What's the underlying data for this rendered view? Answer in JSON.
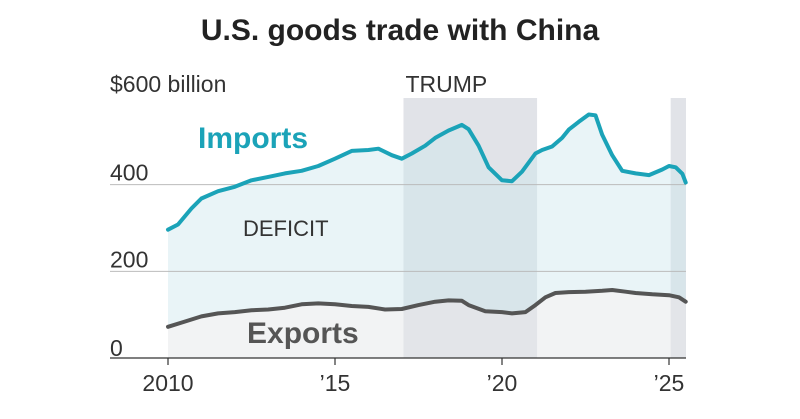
{
  "chart_data": {
    "type": "area",
    "title": "U.S. goods trade with China",
    "y_unit_label": "$600 billion",
    "ylim": [
      0,
      600
    ],
    "xlim": [
      2010,
      2025.6
    ],
    "y_ticks": [
      {
        "value": 0,
        "label": "0"
      },
      {
        "value": 200,
        "label": "200"
      },
      {
        "value": 400,
        "label": "400"
      },
      {
        "value": 600,
        "label": "$600 billion"
      }
    ],
    "x_ticks": [
      {
        "value": 2010,
        "label": "2010"
      },
      {
        "value": 2015,
        "label": "’15"
      },
      {
        "value": 2020,
        "label": "’20"
      },
      {
        "value": 2025,
        "label": "’25"
      }
    ],
    "grid": true,
    "shaded_periods": [
      {
        "label": "TRUMP",
        "start": 2017.05,
        "end": 2021.05,
        "color": "#e1e3e8"
      },
      {
        "label": "",
        "start": 2025.05,
        "end": 2025.6,
        "color": "#e1e3e8"
      }
    ],
    "fill_label": "DEFICIT",
    "series": [
      {
        "name": "Imports",
        "color": "#1ba3b8",
        "x": [
          2010.0,
          2010.3,
          2010.7,
          2011.0,
          2011.5,
          2012.0,
          2012.5,
          2013.0,
          2013.5,
          2014.0,
          2014.5,
          2015.0,
          2015.5,
          2016.0,
          2016.3,
          2016.7,
          2017.0,
          2017.3,
          2017.7,
          2018.0,
          2018.4,
          2018.8,
          2019.0,
          2019.3,
          2019.6,
          2020.0,
          2020.3,
          2020.6,
          2021.0,
          2021.2,
          2021.5,
          2021.8,
          2022.0,
          2022.3,
          2022.6,
          2022.8,
          2023.0,
          2023.3,
          2023.6,
          2024.0,
          2024.4,
          2024.8,
          2025.0,
          2025.2,
          2025.4,
          2025.5
        ],
        "values": [
          296,
          308,
          345,
          368,
          385,
          395,
          410,
          418,
          426,
          432,
          443,
          460,
          478,
          480,
          483,
          468,
          460,
          472,
          490,
          508,
          525,
          538,
          528,
          490,
          440,
          410,
          408,
          430,
          472,
          480,
          488,
          508,
          527,
          545,
          562,
          560,
          515,
          468,
          432,
          426,
          422,
          435,
          443,
          440,
          425,
          405
        ]
      },
      {
        "name": "Exports",
        "color": "#555555",
        "x": [
          2010.0,
          2010.5,
          2011.0,
          2011.5,
          2012.0,
          2012.5,
          2013.0,
          2013.5,
          2014.0,
          2014.5,
          2015.0,
          2015.5,
          2016.0,
          2016.5,
          2017.0,
          2017.5,
          2018.0,
          2018.4,
          2018.8,
          2019.0,
          2019.5,
          2020.0,
          2020.3,
          2020.7,
          2021.0,
          2021.3,
          2021.6,
          2022.0,
          2022.5,
          2023.0,
          2023.3,
          2023.7,
          2024.0,
          2024.5,
          2025.0,
          2025.3,
          2025.5
        ],
        "values": [
          72,
          84,
          96,
          103,
          106,
          110,
          112,
          116,
          124,
          126,
          124,
          120,
          118,
          112,
          113,
          122,
          130,
          133,
          132,
          122,
          108,
          106,
          103,
          106,
          122,
          140,
          150,
          152,
          153,
          155,
          157,
          153,
          150,
          147,
          145,
          140,
          130
        ]
      }
    ]
  }
}
